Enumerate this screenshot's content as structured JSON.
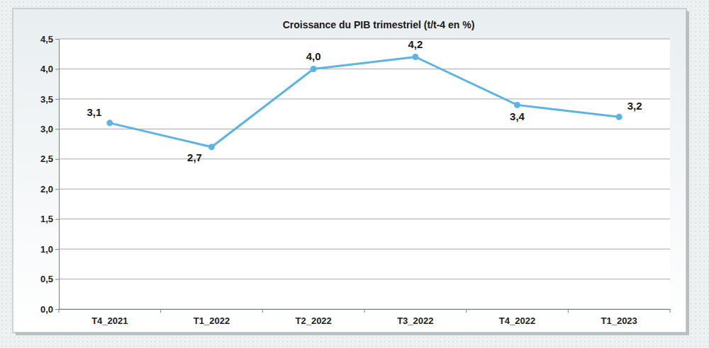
{
  "chart_data": {
    "type": "line",
    "title": "Croissance du PIB trimestriel (t/t-4 en %)",
    "categories": [
      "T4_2021",
      "T1_2022",
      "T2_2022",
      "T3_2022",
      "T4_2022",
      "T1_2023"
    ],
    "values": [
      3.1,
      2.7,
      4.0,
      4.2,
      3.4,
      3.2
    ],
    "value_labels": [
      "3,1",
      "2,7",
      "4,0",
      "4,2",
      "3,4",
      "3,2"
    ],
    "color": "#5db4e4",
    "marker": "circle",
    "line_style": "solid",
    "ylim": [
      0,
      4.5
    ],
    "yticks": [
      {
        "value": 0,
        "label": "0,0"
      },
      {
        "value": 0.5,
        "label": "0,5"
      },
      {
        "value": 1,
        "label": "1,0"
      },
      {
        "value": 1.5,
        "label": "1,5"
      },
      {
        "value": 2,
        "label": "2,0"
      },
      {
        "value": 2.5,
        "label": "2,5"
      },
      {
        "value": 3,
        "label": "3,0"
      },
      {
        "value": 3.5,
        "label": "3,5"
      },
      {
        "value": 4,
        "label": "4,0"
      },
      {
        "value": 4.5,
        "label": "4,5"
      }
    ],
    "grid": true,
    "data_labels": true
  }
}
